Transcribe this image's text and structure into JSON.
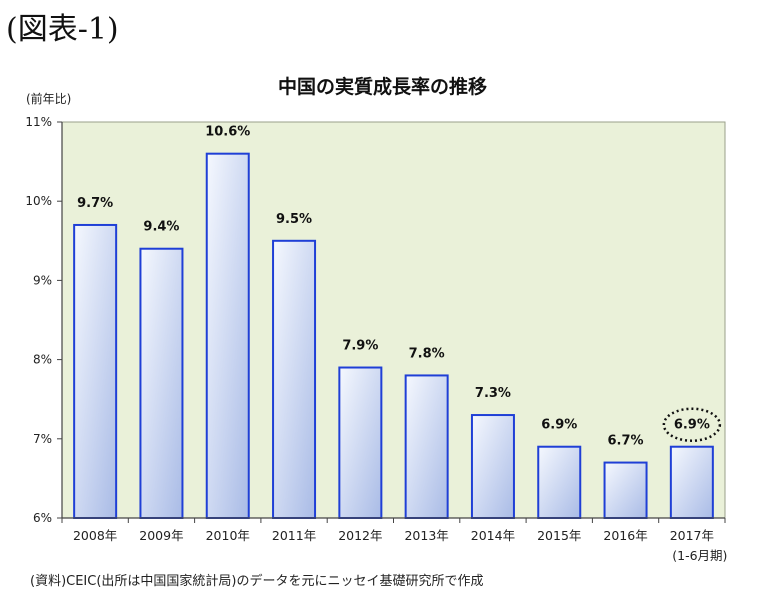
{
  "figure_label": "(図表-1)",
  "y_unit": "(前年比)",
  "source": "(資料)CEIC(出所は中国国家統計局)のデータを元にニッセイ基礎研究所で作成",
  "colors": {
    "plot_bg": "#eaf1d9",
    "bar_edge": "#1f3fd6",
    "bar_fill_light": "#f5f8fe",
    "bar_fill_dark": "#a9bbe6",
    "axis": "#444444"
  },
  "chart_data": {
    "type": "bar",
    "title": "中国の実質成長率の推移",
    "categories": [
      "2008年",
      "2009年",
      "2010年",
      "2011年",
      "2012年",
      "2013年",
      "2014年",
      "2015年",
      "2016年",
      "2017年"
    ],
    "category_sublabels": [
      "",
      "",
      "",
      "",
      "",
      "",
      "",
      "",
      "",
      "(1-6月期)"
    ],
    "values": [
      9.7,
      9.4,
      10.6,
      9.5,
      7.9,
      7.8,
      7.3,
      6.9,
      6.7,
      6.9
    ],
    "data_labels": [
      "9.7%",
      "9.4%",
      "10.6%",
      "9.5%",
      "7.9%",
      "7.8%",
      "7.3%",
      "6.9%",
      "6.7%",
      "6.9%"
    ],
    "ylabel": "(前年比)",
    "ylim": [
      6,
      11
    ],
    "yticks": [
      6,
      7,
      8,
      9,
      10,
      11
    ],
    "ytick_labels": [
      "6%",
      "7%",
      "8%",
      "9%",
      "10%",
      "11%"
    ],
    "grid": false,
    "highlight_index": 9
  }
}
